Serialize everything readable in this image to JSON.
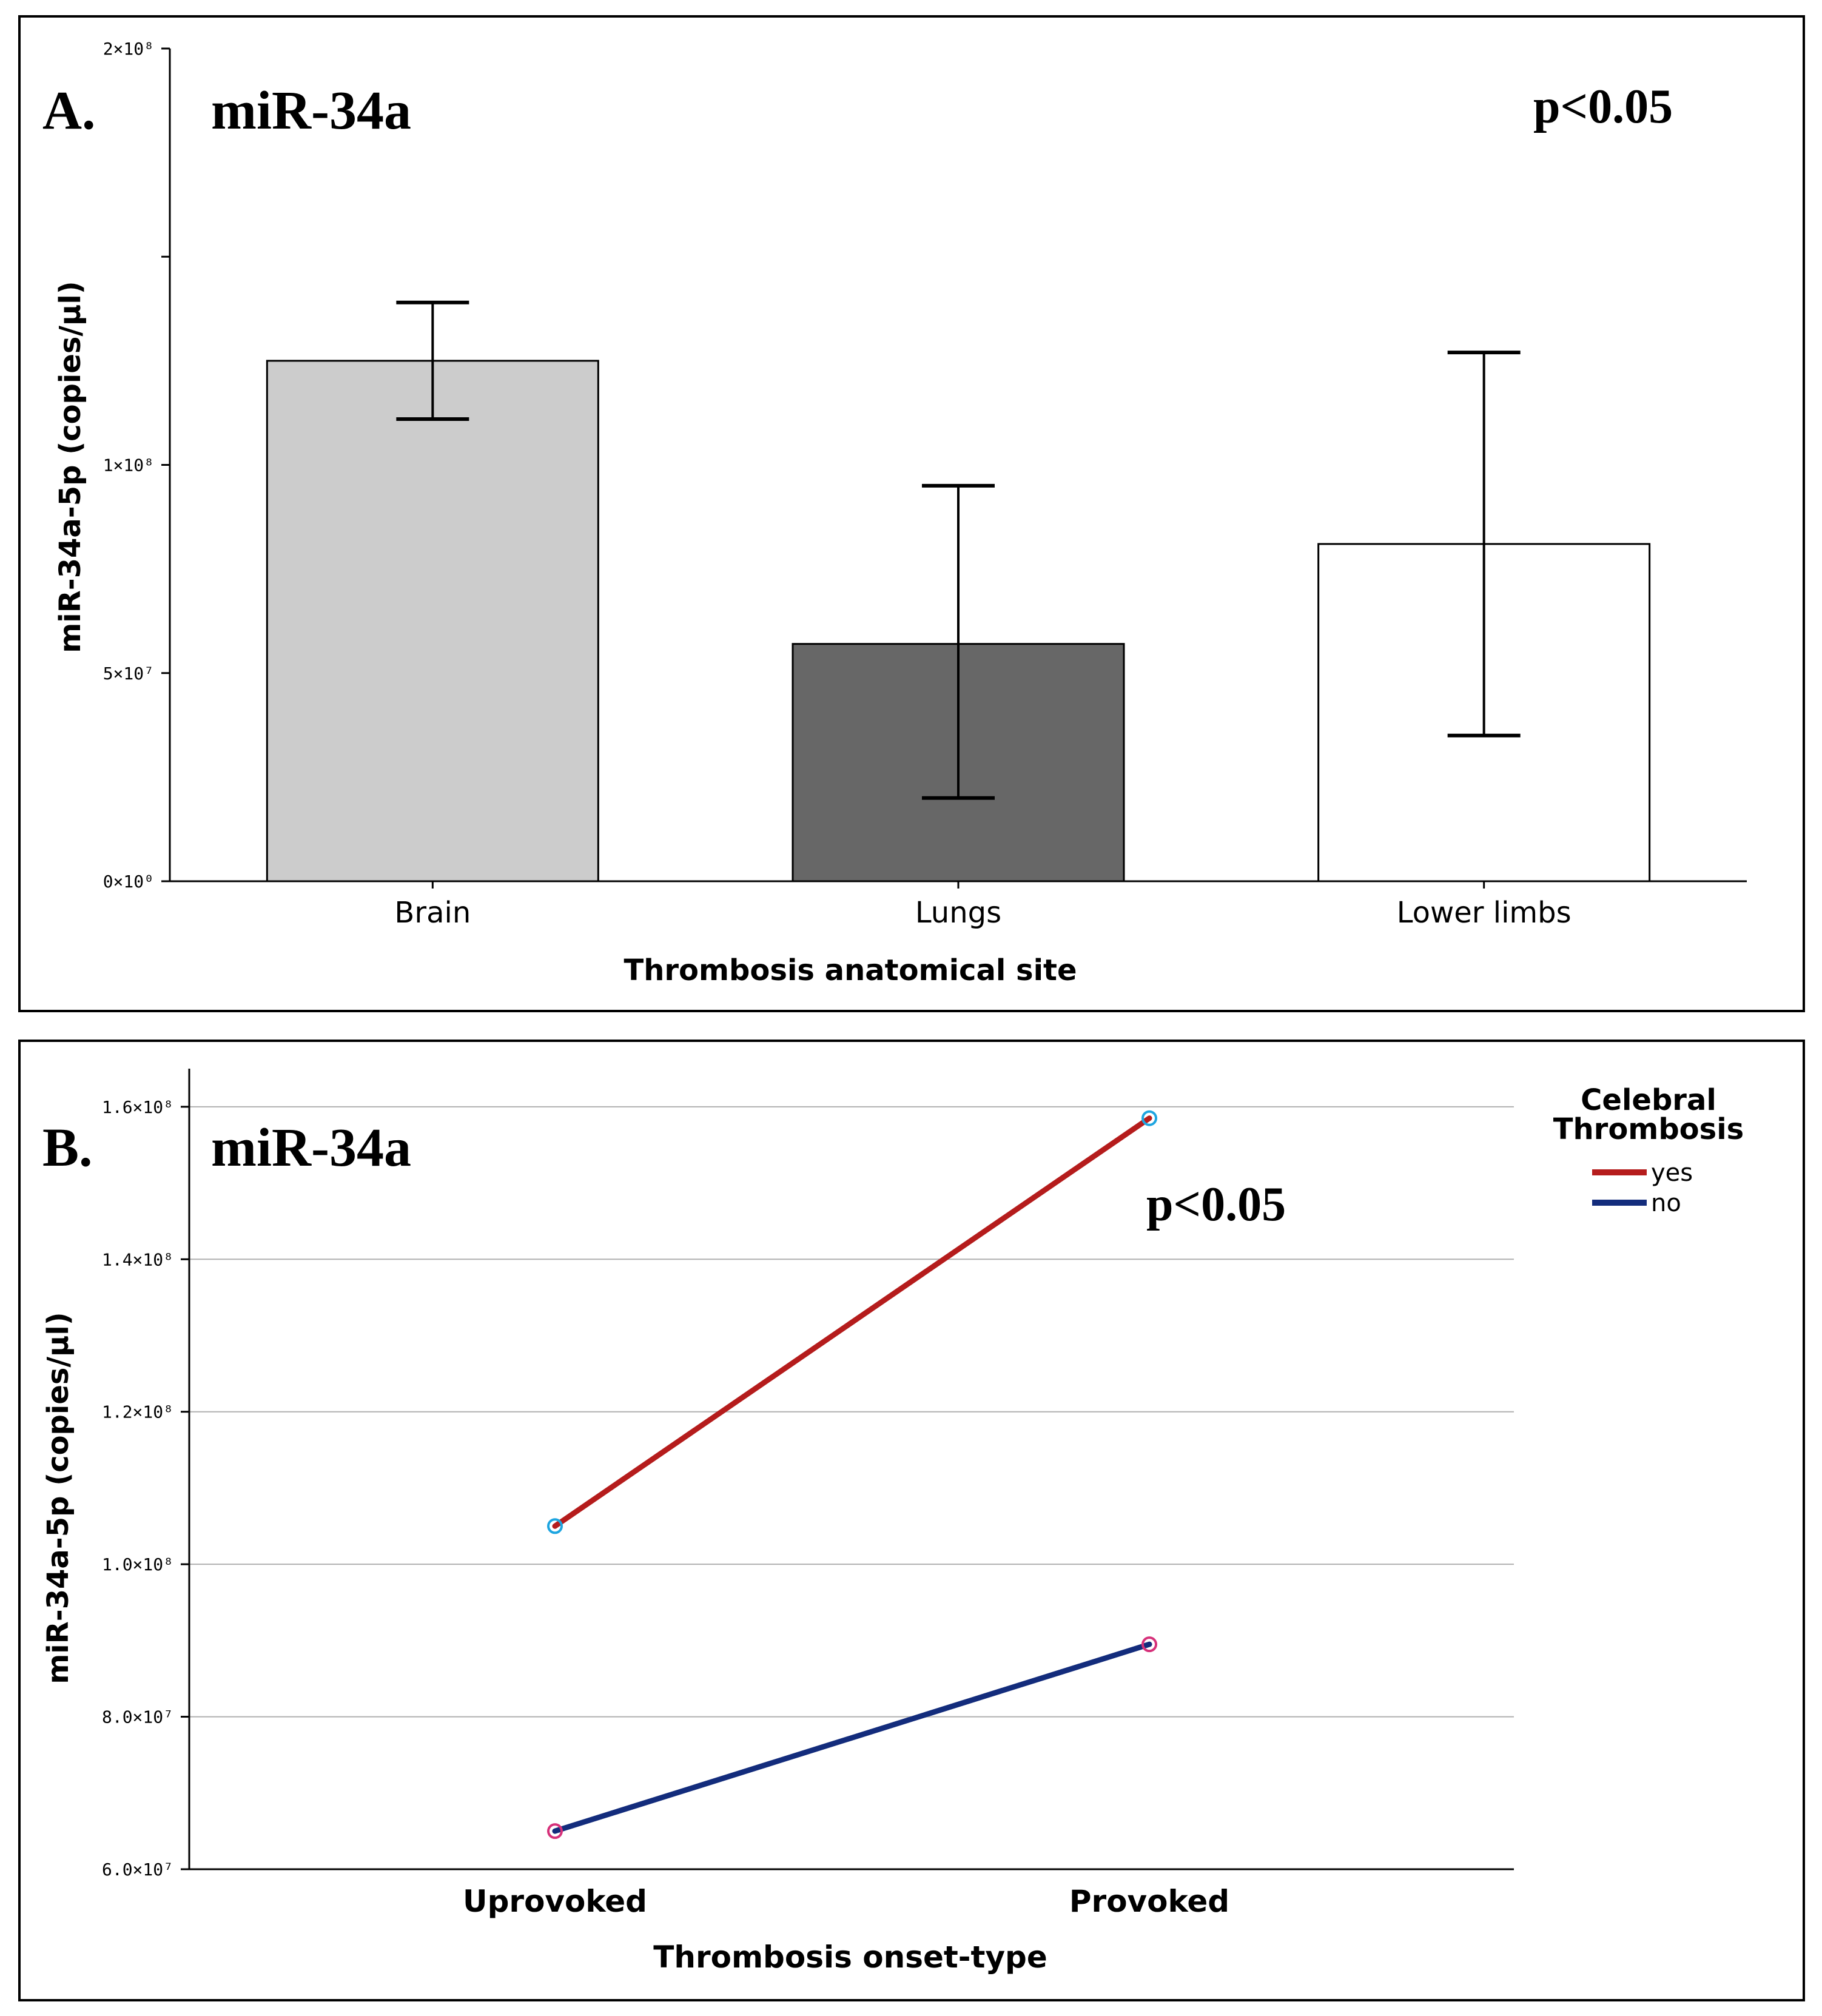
{
  "chart_data": [
    {
      "panel_label": "A.",
      "type": "bar",
      "title": "miR-34a",
      "annotation": "p<0.05",
      "xlabel": "Thrombosis anatomical site",
      "ylabel": "miR-34a-5p (copies/µl)",
      "ylim": [
        0,
        200000000
      ],
      "yticks": [
        {
          "value": 0,
          "label": "0×10⁰"
        },
        {
          "value": 50000000,
          "label": "5×10⁷"
        },
        {
          "value": 100000000,
          "label": "1×10⁸"
        },
        {
          "value": 150000000,
          "label": ""
        },
        {
          "value": 200000000,
          "label": "2×10⁸"
        }
      ],
      "categories": [
        "Brain",
        "Lungs",
        "Lower limbs"
      ],
      "values": [
        125000000,
        57000000,
        81000000
      ],
      "error_low": [
        111000000,
        20000000,
        35000000
      ],
      "error_high": [
        139000000,
        95000000,
        127000000
      ],
      "bar_colors": [
        "#cccccc",
        "#676767",
        "#ffffff"
      ],
      "grid": false,
      "legend": "none"
    },
    {
      "panel_label": "B.",
      "type": "line",
      "title": "miR-34a",
      "annotation": "p<0.05",
      "xlabel": "Thrombosis onset-type",
      "ylabel": "miR-34a-5p (copies/µl)",
      "ylim": [
        60000000,
        165000000
      ],
      "yticks": [
        {
          "value": 60000000,
          "label": "6.0×10⁷"
        },
        {
          "value": 80000000,
          "label": "8.0×10⁷"
        },
        {
          "value": 100000000,
          "label": "1.0×10⁸"
        },
        {
          "value": 120000000,
          "label": "1.2×10⁸"
        },
        {
          "value": 140000000,
          "label": "1.4×10⁸"
        },
        {
          "value": 160000000,
          "label": "1.6×10⁸"
        }
      ],
      "categories": [
        "Uprovoked",
        "Provoked"
      ],
      "series": [
        {
          "name": "yes",
          "values": [
            105000000,
            158500000
          ],
          "color": "#b51c1c",
          "marker_color": "#1ea5e0"
        },
        {
          "name": "no",
          "values": [
            65000000,
            89500000
          ],
          "color": "#132c7c",
          "marker_color": "#d6317a"
        }
      ],
      "legend_title": "Celebral Thrombosis",
      "legend_placement": "top-right",
      "grid": true
    }
  ]
}
